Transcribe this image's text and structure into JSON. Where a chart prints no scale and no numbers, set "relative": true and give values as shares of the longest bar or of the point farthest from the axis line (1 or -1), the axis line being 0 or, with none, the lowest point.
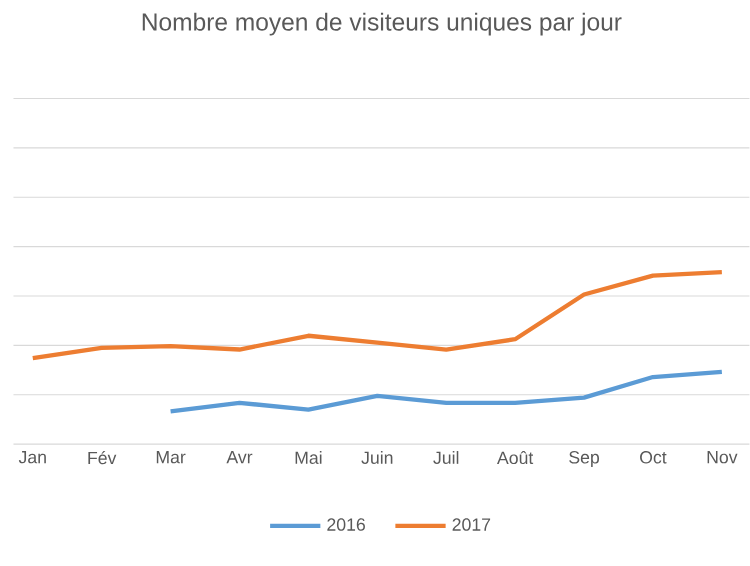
{
  "chart_data": {
    "type": "line",
    "title": "Nombre moyen de visiteurs uniques par jour",
    "relative": true,
    "grid": "y",
    "legend": "bottom",
    "marker": "none",
    "line_style": "solid",
    "categories": [
      "Jan",
      "Fév",
      "Mar",
      "Avr",
      "Mai",
      "Juin",
      "Juil",
      "Août",
      "Sep",
      "Oct",
      "Nov"
    ],
    "series": [
      {
        "name": "2016",
        "color": "#5b9bd5",
        "values": [
          null,
          null,
          0.19,
          0.24,
          0.2,
          0.28,
          0.24,
          0.24,
          0.27,
          0.39,
          0.42
        ]
      },
      {
        "name": "2017",
        "color": "#ed7d31",
        "values": [
          0.5,
          0.56,
          0.57,
          0.55,
          0.63,
          0.59,
          0.55,
          0.61,
          0.87,
          0.98,
          1
        ]
      }
    ]
  }
}
